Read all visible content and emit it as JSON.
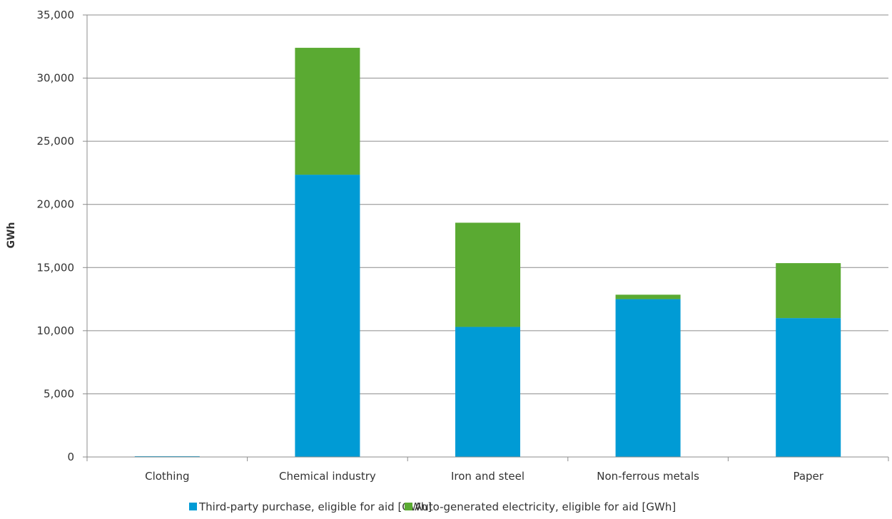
{
  "chart_data": {
    "type": "bar",
    "stacked": true,
    "categories": [
      "Clothing",
      "Chemical industry",
      "Iron and steel",
      "Non-ferrous metals",
      "Paper"
    ],
    "series": [
      {
        "name": "Third-party purchase, eligible for aid [GWh]",
        "values": [
          60,
          22350,
          10300,
          12500,
          11000
        ],
        "color": "#009bd5"
      },
      {
        "name": "Auto-generated electricity, eligible for aid [GWh]",
        "values": [
          0,
          10050,
          8250,
          350,
          4350
        ],
        "color": "#5aaa32"
      }
    ],
    "ylabel": "GWh",
    "xlabel": "",
    "ylim": [
      0,
      35000
    ],
    "yticks": [
      0,
      5000,
      10000,
      15000,
      20000,
      25000,
      30000,
      35000
    ],
    "ytick_labels": [
      "0",
      "5,000",
      "10,000",
      "15,000",
      "20,000",
      "25,000",
      "30,000",
      "35,000"
    ],
    "grid": true,
    "legend_position": "bottom"
  }
}
